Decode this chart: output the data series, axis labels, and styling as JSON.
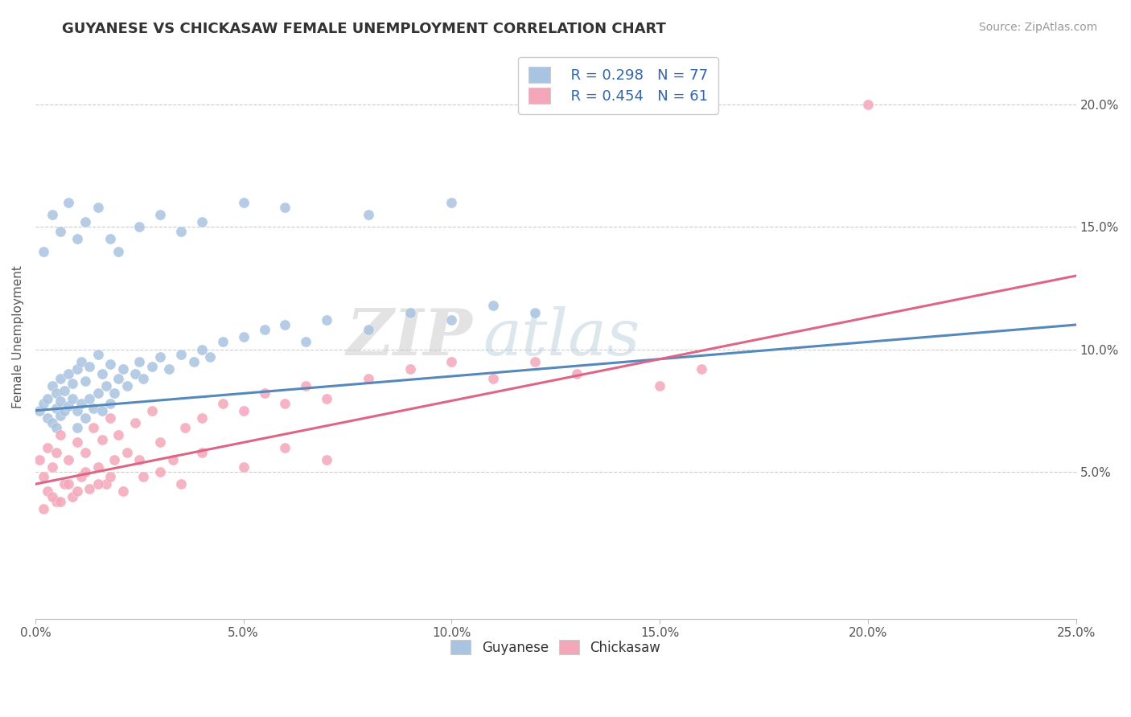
{
  "title": "GUYANESE VS CHICKASAW FEMALE UNEMPLOYMENT CORRELATION CHART",
  "source_text": "Source: ZipAtlas.com",
  "ylabel": "Female Unemployment",
  "xlim": [
    0.0,
    0.25
  ],
  "ylim": [
    -0.01,
    0.22
  ],
  "x_ticks": [
    0.0,
    0.05,
    0.1,
    0.15,
    0.2,
    0.25
  ],
  "x_tick_labels": [
    "0.0%",
    "5.0%",
    "10.0%",
    "15.0%",
    "20.0%",
    "25.0%"
  ],
  "y_ticks": [
    0.05,
    0.1,
    0.15,
    0.2
  ],
  "y_tick_labels": [
    "5.0%",
    "10.0%",
    "15.0%",
    "20.0%"
  ],
  "guyanese_color": "#a8c4e0",
  "chickasaw_color": "#f4a7b9",
  "guyanese_line_color": "#5588bb",
  "chickasaw_line_color": "#dd6688",
  "watermark_zip": "ZIP",
  "watermark_atlas": "atlas",
  "background_color": "#ffffff",
  "grid_color": "#cccccc",
  "guyanese_x": [
    0.001,
    0.002,
    0.003,
    0.003,
    0.004,
    0.004,
    0.005,
    0.005,
    0.005,
    0.006,
    0.006,
    0.006,
    0.007,
    0.007,
    0.008,
    0.008,
    0.009,
    0.009,
    0.01,
    0.01,
    0.01,
    0.011,
    0.011,
    0.012,
    0.012,
    0.013,
    0.013,
    0.014,
    0.015,
    0.015,
    0.016,
    0.016,
    0.017,
    0.018,
    0.018,
    0.019,
    0.02,
    0.021,
    0.022,
    0.024,
    0.025,
    0.026,
    0.028,
    0.03,
    0.032,
    0.035,
    0.038,
    0.04,
    0.042,
    0.045,
    0.05,
    0.055,
    0.06,
    0.065,
    0.07,
    0.08,
    0.09,
    0.1,
    0.11,
    0.12,
    0.002,
    0.004,
    0.006,
    0.008,
    0.01,
    0.012,
    0.015,
    0.018,
    0.02,
    0.025,
    0.03,
    0.035,
    0.04,
    0.05,
    0.06,
    0.08,
    0.1
  ],
  "guyanese_y": [
    0.075,
    0.078,
    0.08,
    0.072,
    0.085,
    0.07,
    0.076,
    0.082,
    0.068,
    0.079,
    0.073,
    0.088,
    0.075,
    0.083,
    0.077,
    0.09,
    0.08,
    0.086,
    0.075,
    0.092,
    0.068,
    0.078,
    0.095,
    0.072,
    0.087,
    0.08,
    0.093,
    0.076,
    0.082,
    0.098,
    0.075,
    0.09,
    0.085,
    0.078,
    0.094,
    0.082,
    0.088,
    0.092,
    0.085,
    0.09,
    0.095,
    0.088,
    0.093,
    0.097,
    0.092,
    0.098,
    0.095,
    0.1,
    0.097,
    0.103,
    0.105,
    0.108,
    0.11,
    0.103,
    0.112,
    0.108,
    0.115,
    0.112,
    0.118,
    0.115,
    0.14,
    0.155,
    0.148,
    0.16,
    0.145,
    0.152,
    0.158,
    0.145,
    0.14,
    0.15,
    0.155,
    0.148,
    0.152,
    0.16,
    0.158,
    0.155,
    0.16
  ],
  "chickasaw_x": [
    0.001,
    0.002,
    0.003,
    0.003,
    0.004,
    0.005,
    0.005,
    0.006,
    0.007,
    0.008,
    0.009,
    0.01,
    0.011,
    0.012,
    0.013,
    0.014,
    0.015,
    0.016,
    0.017,
    0.018,
    0.019,
    0.02,
    0.022,
    0.024,
    0.026,
    0.028,
    0.03,
    0.033,
    0.036,
    0.04,
    0.045,
    0.05,
    0.055,
    0.06,
    0.065,
    0.07,
    0.08,
    0.09,
    0.1,
    0.11,
    0.12,
    0.13,
    0.15,
    0.16,
    0.002,
    0.004,
    0.006,
    0.008,
    0.01,
    0.012,
    0.015,
    0.018,
    0.021,
    0.025,
    0.03,
    0.035,
    0.04,
    0.05,
    0.06,
    0.07,
    0.2
  ],
  "chickasaw_y": [
    0.055,
    0.048,
    0.06,
    0.042,
    0.052,
    0.058,
    0.038,
    0.065,
    0.045,
    0.055,
    0.04,
    0.062,
    0.048,
    0.058,
    0.043,
    0.068,
    0.052,
    0.063,
    0.045,
    0.072,
    0.055,
    0.065,
    0.058,
    0.07,
    0.048,
    0.075,
    0.062,
    0.055,
    0.068,
    0.072,
    0.078,
    0.075,
    0.082,
    0.078,
    0.085,
    0.08,
    0.088,
    0.092,
    0.095,
    0.088,
    0.095,
    0.09,
    0.085,
    0.092,
    0.035,
    0.04,
    0.038,
    0.045,
    0.042,
    0.05,
    0.045,
    0.048,
    0.042,
    0.055,
    0.05,
    0.045,
    0.058,
    0.052,
    0.06,
    0.055,
    0.2
  ]
}
